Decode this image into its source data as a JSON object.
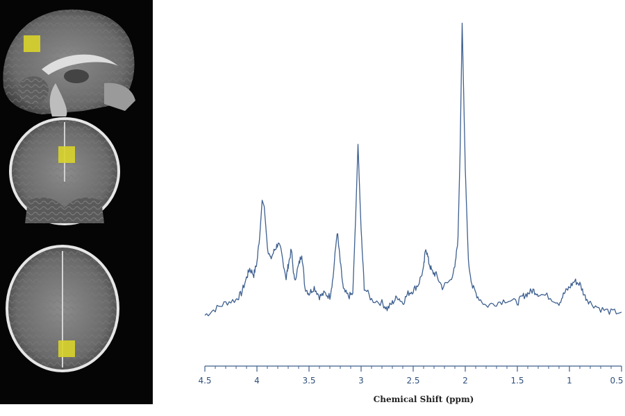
{
  "chart_data": {
    "type": "line",
    "title": "",
    "xlabel": "Chemical Shift (ppm)",
    "ylabel": "",
    "xlim": [
      4.5,
      0.5
    ],
    "x_reversed": true,
    "x_ticks": [
      "4.5",
      "4",
      "3.5",
      "3",
      "2.5",
      "2",
      "1.5",
      "1",
      "0.5"
    ],
    "x_tick_values": [
      4.5,
      4.0,
      3.5,
      3.0,
      2.5,
      2.0,
      1.5,
      1.0,
      0.5
    ],
    "ylim": [
      0,
      1.0
    ],
    "grid": false,
    "line_color": "#3d5f8f",
    "series": [
      {
        "name": "",
        "points": [
          [
            4.5,
            0.03
          ],
          [
            4.4,
            0.05
          ],
          [
            4.3,
            0.07
          ],
          [
            4.2,
            0.08
          ],
          [
            4.15,
            0.1
          ],
          [
            4.1,
            0.15
          ],
          [
            4.07,
            0.18
          ],
          [
            4.03,
            0.16
          ],
          [
            4.0,
            0.2
          ],
          [
            3.97,
            0.3
          ],
          [
            3.95,
            0.4
          ],
          [
            3.93,
            0.38
          ],
          [
            3.9,
            0.25
          ],
          [
            3.87,
            0.21
          ],
          [
            3.83,
            0.24
          ],
          [
            3.8,
            0.26
          ],
          [
            3.77,
            0.24
          ],
          [
            3.72,
            0.15
          ],
          [
            3.7,
            0.19
          ],
          [
            3.67,
            0.24
          ],
          [
            3.64,
            0.14
          ],
          [
            3.6,
            0.19
          ],
          [
            3.57,
            0.23
          ],
          [
            3.54,
            0.12
          ],
          [
            3.5,
            0.1
          ],
          [
            3.45,
            0.12
          ],
          [
            3.4,
            0.09
          ],
          [
            3.35,
            0.1
          ],
          [
            3.3,
            0.09
          ],
          [
            3.27,
            0.15
          ],
          [
            3.23,
            0.3
          ],
          [
            3.2,
            0.2
          ],
          [
            3.17,
            0.11
          ],
          [
            3.12,
            0.09
          ],
          [
            3.08,
            0.1
          ],
          [
            3.05,
            0.37
          ],
          [
            3.03,
            0.58
          ],
          [
            3.0,
            0.3
          ],
          [
            2.97,
            0.12
          ],
          [
            2.9,
            0.08
          ],
          [
            2.8,
            0.07
          ],
          [
            2.75,
            0.05
          ],
          [
            2.7,
            0.07
          ],
          [
            2.65,
            0.09
          ],
          [
            2.6,
            0.07
          ],
          [
            2.55,
            0.1
          ],
          [
            2.5,
            0.11
          ],
          [
            2.45,
            0.13
          ],
          [
            2.4,
            0.18
          ],
          [
            2.38,
            0.25
          ],
          [
            2.35,
            0.2
          ],
          [
            2.32,
            0.17
          ],
          [
            2.28,
            0.16
          ],
          [
            2.22,
            0.12
          ],
          [
            2.15,
            0.14
          ],
          [
            2.1,
            0.18
          ],
          [
            2.07,
            0.28
          ],
          [
            2.05,
            0.55
          ],
          [
            2.03,
            0.97
          ],
          [
            2.0,
            0.5
          ],
          [
            1.97,
            0.2
          ],
          [
            1.93,
            0.12
          ],
          [
            1.88,
            0.09
          ],
          [
            1.8,
            0.06
          ],
          [
            1.7,
            0.07
          ],
          [
            1.6,
            0.08
          ],
          [
            1.5,
            0.07
          ],
          [
            1.45,
            0.09
          ],
          [
            1.4,
            0.1
          ],
          [
            1.35,
            0.11
          ],
          [
            1.3,
            0.1
          ],
          [
            1.2,
            0.09
          ],
          [
            1.1,
            0.07
          ],
          [
            1.05,
            0.1
          ],
          [
            1.0,
            0.12
          ],
          [
            0.95,
            0.14
          ],
          [
            0.9,
            0.13
          ],
          [
            0.85,
            0.09
          ],
          [
            0.8,
            0.07
          ],
          [
            0.7,
            0.05
          ],
          [
            0.6,
            0.04
          ],
          [
            0.5,
            0.04
          ]
        ]
      }
    ]
  },
  "mri_images": {
    "views": [
      "sagittal",
      "coronal",
      "axial"
    ],
    "voxel_color": "#d9d42a"
  }
}
